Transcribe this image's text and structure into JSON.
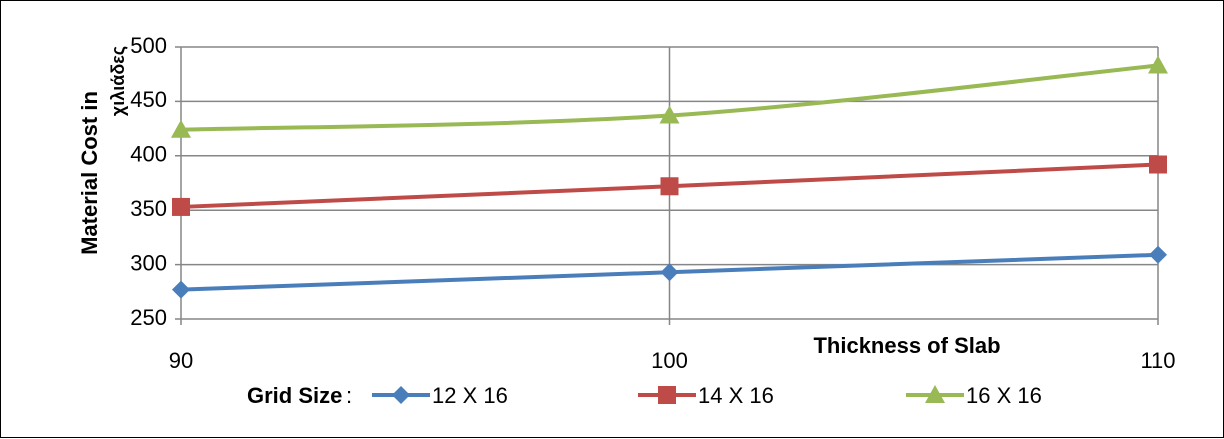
{
  "chart_data": {
    "type": "line",
    "x": [
      90,
      100,
      110
    ],
    "x_tick_labels": [
      "90",
      "100",
      "110"
    ],
    "series": [
      {
        "name": "12 X 16",
        "values": [
          277,
          293,
          309
        ],
        "color": "#4a7ebb",
        "marker": "diamond"
      },
      {
        "name": "14 X 16",
        "values": [
          353,
          372,
          392
        ],
        "color": "#be4b48",
        "marker": "square"
      },
      {
        "name": "16 X 16",
        "values": [
          424,
          437,
          483
        ],
        "color": "#98b954",
        "marker": "triangle"
      }
    ],
    "y_ticks": [
      250,
      300,
      350,
      400,
      450,
      500
    ],
    "ylim": [
      250,
      500
    ],
    "xlim": [
      90,
      110
    ],
    "xlabel": "Thickness of Slab",
    "ylabel": "Material Cost in",
    "y_unit_label": "χιλιάδες",
    "legend_title": "Grid Size",
    "legend_separator": ":",
    "legend_position": "bottom",
    "grid": true,
    "colors": {
      "grid": "#868686"
    }
  }
}
